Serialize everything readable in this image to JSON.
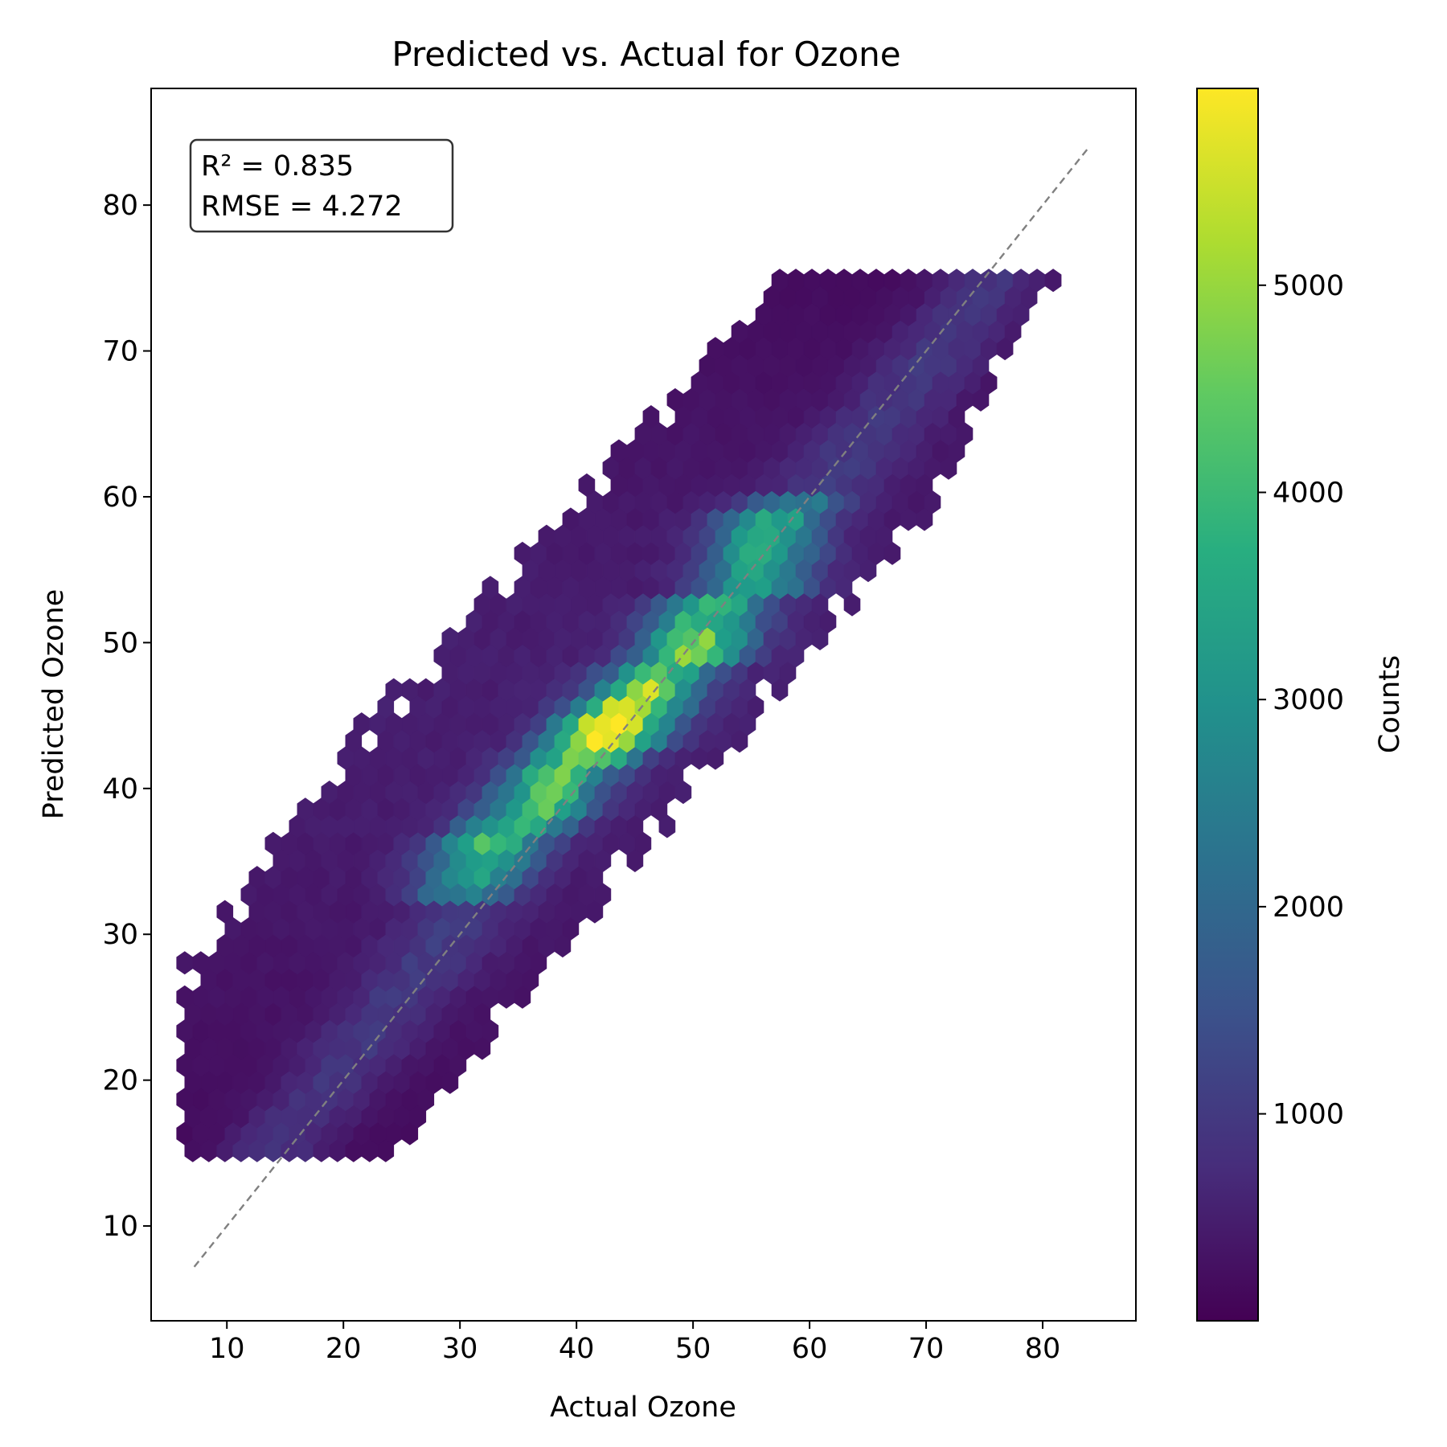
{
  "chart_data": {
    "type": "hexbin",
    "title": "Predicted vs. Actual for Ozone",
    "xlabel": "Actual Ozone",
    "ylabel": "Predicted Ozone",
    "xlim": [
      3.5,
      88
    ],
    "ylim": [
      3.5,
      88
    ],
    "x_ticks": [
      10,
      20,
      30,
      40,
      50,
      60,
      70,
      80
    ],
    "y_ticks": [
      10,
      20,
      30,
      40,
      50,
      60,
      70,
      80
    ],
    "reference_line": {
      "style": "dashed",
      "color": "#808080",
      "x": [
        7.2,
        84
      ],
      "y": [
        7.2,
        84
      ]
    },
    "stats": {
      "r2": "R² = 0.835",
      "rmse": "RMSE = 4.272"
    },
    "colorbar": {
      "label": "Counts",
      "colormap": "viridis",
      "range": [
        1,
        5950
      ],
      "ticks": [
        1000,
        2000,
        3000,
        4000,
        5000
      ]
    },
    "density_ridges": [
      {
        "x": 30,
        "y": 32,
        "count": 2000
      },
      {
        "x": 32.5,
        "y": 36,
        "count": 3800
      },
      {
        "x": 34,
        "y": 37,
        "count": 3600
      },
      {
        "x": 36,
        "y": 38,
        "count": 3700
      },
      {
        "x": 39,
        "y": 41.5,
        "count": 3900
      },
      {
        "x": 41.5,
        "y": 42.5,
        "count": 4800
      },
      {
        "x": 42.5,
        "y": 43.5,
        "count": 5950
      },
      {
        "x": 43.3,
        "y": 44.5,
        "count": 5800
      },
      {
        "x": 48,
        "y": 48.5,
        "count": 3500
      },
      {
        "x": 49.5,
        "y": 48.7,
        "count": 4400
      },
      {
        "x": 52,
        "y": 53,
        "count": 3300
      },
      {
        "x": 55,
        "y": 53.5,
        "count": 3000
      },
      {
        "x": 57,
        "y": 59,
        "count": 3400
      },
      {
        "x": 60,
        "y": 60,
        "count": 1500
      }
    ]
  }
}
